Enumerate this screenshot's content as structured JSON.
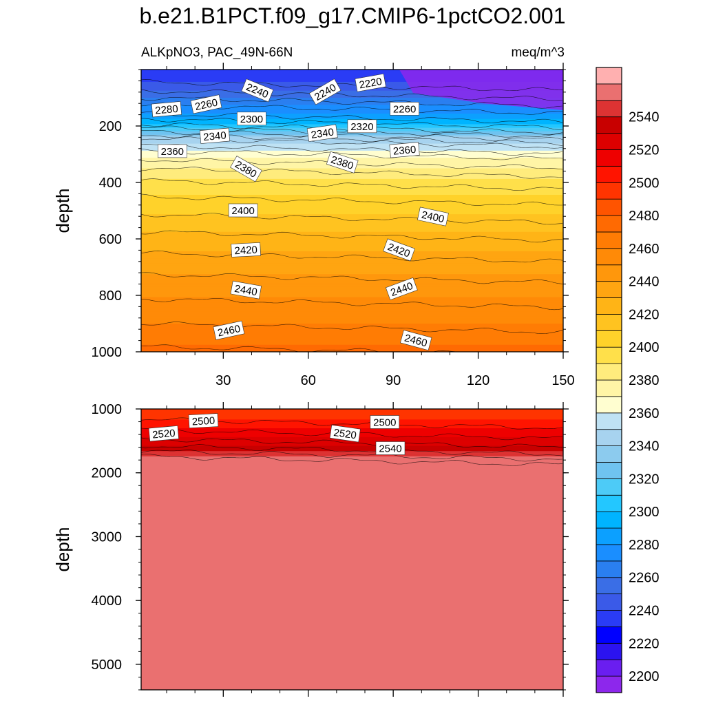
{
  "title": "b.e21.B1PCT.f09_g17.CMIP6-1pctCO2.001",
  "chart_data": {
    "type": "contour",
    "left_label": "ALKpNO3, PAC_49N-66N",
    "right_label": "meq/m^3",
    "xlabel": "",
    "ylabel": "depth",
    "xlim": [
      1,
      150
    ],
    "x_ticks": [
      30,
      60,
      90,
      120,
      150
    ],
    "panels": [
      {
        "name": "upper",
        "ylim": [
          0,
          1000
        ],
        "y_ticks": [
          200,
          400,
          600,
          800,
          1000
        ],
        "ylabel": "depth"
      },
      {
        "name": "lower",
        "ylim": [
          1000,
          5400
        ],
        "y_ticks": [
          1000,
          2000,
          3000,
          4000,
          5000
        ],
        "ylabel": "depth"
      }
    ],
    "colorbar": {
      "levels": [
        2190,
        2200,
        2210,
        2220,
        2230,
        2240,
        2250,
        2260,
        2270,
        2280,
        2290,
        2300,
        2310,
        2320,
        2330,
        2340,
        2350,
        2360,
        2370,
        2380,
        2390,
        2400,
        2410,
        2420,
        2430,
        2440,
        2450,
        2460,
        2470,
        2480,
        2490,
        2500,
        2510,
        2520,
        2530,
        2540,
        2550,
        2560
      ],
      "labels": [
        2200,
        2220,
        2240,
        2260,
        2280,
        2300,
        2320,
        2340,
        2360,
        2380,
        2400,
        2420,
        2440,
        2460,
        2480,
        2500,
        2520,
        2540
      ],
      "colors": [
        "#8d27ec",
        "#6a1ef0",
        "#2b13f0",
        "#0000ff",
        "#2a3cf5",
        "#3a5ae8",
        "#3a6ee6",
        "#2a7ff0",
        "#1a8eff",
        "#0ca0ff",
        "#00b4ff",
        "#23c7ff",
        "#4dcbf7",
        "#6fc3f0",
        "#8ccbee",
        "#a7d3ef",
        "#bfe2f4",
        "#fffed0",
        "#fff5a6",
        "#ffec7d",
        "#ffe04a",
        "#ffd22a",
        "#ffc320",
        "#ffb416",
        "#ffa511",
        "#ff970c",
        "#ff8a07",
        "#ff7c04",
        "#ff6a02",
        "#ff5400",
        "#ff3400",
        "#ff1400",
        "#ee0000",
        "#dd0000",
        "#c80000",
        "#dd3333",
        "#ea7070",
        "#ffb0b0"
      ]
    },
    "upper_profile": [
      {
        "depth": 5,
        "value": 2230
      },
      {
        "depth": 60,
        "value": 2245
      },
      {
        "depth": 110,
        "value": 2265
      },
      {
        "depth": 160,
        "value": 2282
      },
      {
        "depth": 200,
        "value": 2305
      },
      {
        "depth": 240,
        "value": 2340
      },
      {
        "depth": 290,
        "value": 2362
      },
      {
        "depth": 330,
        "value": 2375
      },
      {
        "depth": 400,
        "value": 2393
      },
      {
        "depth": 500,
        "value": 2408
      },
      {
        "depth": 600,
        "value": 2424
      },
      {
        "depth": 700,
        "value": 2437
      },
      {
        "depth": 800,
        "value": 2449
      },
      {
        "depth": 900,
        "value": 2460
      },
      {
        "depth": 1000,
        "value": 2473
      }
    ],
    "lower_profile": [
      {
        "depth": 1000,
        "value": 2490
      },
      {
        "depth": 1200,
        "value": 2503
      },
      {
        "depth": 1400,
        "value": 2516
      },
      {
        "depth": 1600,
        "value": 2532
      },
      {
        "depth": 1750,
        "value": 2552
      },
      {
        "depth": 2000,
        "value": 2558
      },
      {
        "depth": 5400,
        "value": 2558
      }
    ],
    "contour_labels": [
      {
        "text": "2240",
        "x": 42,
        "depth": 75,
        "angle": 22
      },
      {
        "text": "2240",
        "x": 66,
        "depth": 80,
        "angle": -30
      },
      {
        "text": "2220",
        "x": 82,
        "depth": 48,
        "angle": -10
      },
      {
        "text": "2280",
        "x": 10,
        "depth": 142,
        "angle": -5
      },
      {
        "text": "2260",
        "x": 24,
        "depth": 124,
        "angle": -12
      },
      {
        "text": "2260",
        "x": 94,
        "depth": 140,
        "angle": 0
      },
      {
        "text": "2300",
        "x": 40,
        "depth": 175,
        "angle": 0
      },
      {
        "text": "2340",
        "x": 27,
        "depth": 236,
        "angle": -5
      },
      {
        "text": "2340",
        "x": 65,
        "depth": 226,
        "angle": -8
      },
      {
        "text": "2320",
        "x": 79,
        "depth": 202,
        "angle": 0
      },
      {
        "text": "2360",
        "x": 12,
        "depth": 290,
        "angle": 0
      },
      {
        "text": "2360",
        "x": 94,
        "depth": 286,
        "angle": -5
      },
      {
        "text": "2380",
        "x": 38,
        "depth": 353,
        "angle": 30
      },
      {
        "text": "2380",
        "x": 72,
        "depth": 330,
        "angle": 18
      },
      {
        "text": "2400",
        "x": 37,
        "depth": 500,
        "angle": 0
      },
      {
        "text": "2400",
        "x": 104,
        "depth": 522,
        "angle": 12
      },
      {
        "text": "2420",
        "x": 38,
        "depth": 640,
        "angle": -3
      },
      {
        "text": "2420",
        "x": 92,
        "depth": 640,
        "angle": 20
      },
      {
        "text": "2440",
        "x": 38,
        "depth": 782,
        "angle": 10
      },
      {
        "text": "2440",
        "x": 93,
        "depth": 778,
        "angle": -20
      },
      {
        "text": "2460",
        "x": 32,
        "depth": 925,
        "angle": -12
      },
      {
        "text": "2460",
        "x": 98,
        "depth": 960,
        "angle": 15
      },
      {
        "text": "2500",
        "x": 23,
        "depth": 1190,
        "angle": -3
      },
      {
        "text": "2500",
        "x": 87,
        "depth": 1210,
        "angle": 0
      },
      {
        "text": "2520",
        "x": 9,
        "depth": 1390,
        "angle": -5
      },
      {
        "text": "2520",
        "x": 73,
        "depth": 1390,
        "angle": 8
      },
      {
        "text": "2540",
        "x": 89,
        "depth": 1620,
        "angle": 0
      }
    ]
  }
}
